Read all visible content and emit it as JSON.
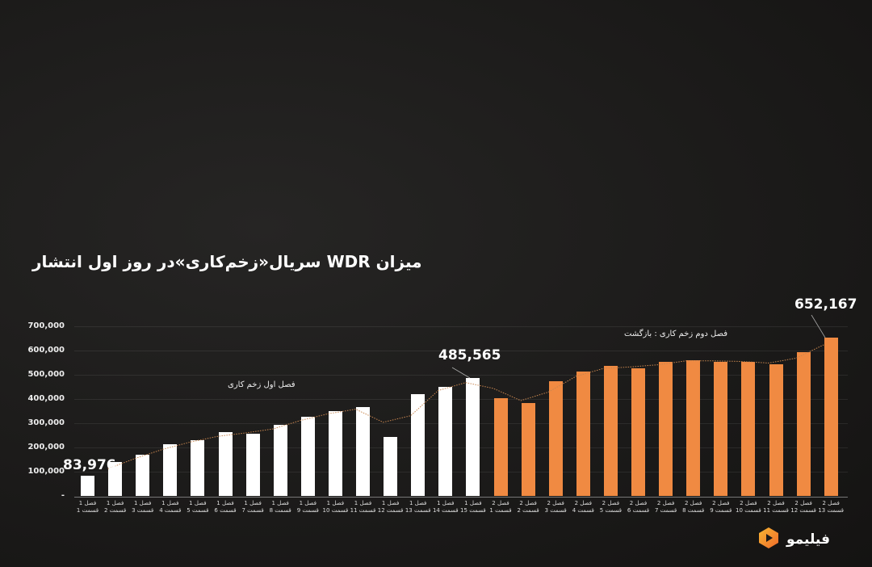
{
  "title": "میزان WDR سریال«زخم‌کاری»در روز اول انتشار",
  "y_ticks": [
    "700,000",
    "600,000",
    "500,000",
    "400,000",
    "300,000",
    "200,000",
    "100,000",
    "-"
  ],
  "annotations": {
    "season1": "فصل اول زخم کاری",
    "season2": "فصل دوم زخم کاری : بازگشت",
    "first_value": "83,976",
    "s1_last_value": "485,565",
    "s2_last_value": "652,167"
  },
  "logo": {
    "text": "فیلیمو",
    "icon": "play-hexagon-icon"
  },
  "colors": {
    "season1": "#ffffff",
    "season2": "#f08a42",
    "background": "#1b1a19"
  },
  "chart_data": {
    "type": "bar",
    "title": "میزان WDR سریال«زخم‌کاری»در روز اول انتشار",
    "xlabel": "",
    "ylabel": "",
    "ylim": [
      0,
      700000
    ],
    "grid": true,
    "trendline": "dotted moving average",
    "categories": [
      "فصل 1 قسمت 1",
      "فصل 1 قسمت 2",
      "فصل 1 قسمت 3",
      "فصل 1 قسمت 4",
      "فصل 1 قسمت 5",
      "فصل 1 قسمت 6",
      "فصل 1 قسمت 7",
      "فصل 1 قسمت 8",
      "فصل 1 قسمت 9",
      "فصل 1 قسمت 10",
      "فصل 1 قسمت 11",
      "فصل 1 قسمت 12",
      "فصل 1 قسمت 13",
      "فصل 1 قسمت 14",
      "فصل 1 قسمت 15",
      "فصل 2 قسمت 1",
      "فصل 2 قسمت 2",
      "فصل 2 قسمت 3",
      "فصل 2 قسمت 4",
      "فصل 2 قسمت 5",
      "فصل 2 قسمت 6",
      "فصل 2 قسمت 7",
      "فصل 2 قسمت 8",
      "فصل 2 قسمت 9",
      "فصل 2 قسمت 10",
      "فصل 2 قسمت 11",
      "فصل 2 قسمت 12",
      "فصل 2 قسمت 13"
    ],
    "series": [
      {
        "name": "فصل اول زخم کاری",
        "color": "#ffffff",
        "values": [
          83976,
          140000,
          170000,
          215000,
          230000,
          262000,
          258000,
          295000,
          328000,
          350000,
          366000,
          242000,
          420000,
          450000,
          485565
        ]
      },
      {
        "name": "فصل دوم زخم کاری : بازگشت",
        "color": "#f08a42",
        "values": [
          402000,
          385000,
          472000,
          515000,
          537000,
          528000,
          555000,
          560000,
          555000,
          555000,
          542000,
          595000,
          652167
        ]
      }
    ]
  }
}
